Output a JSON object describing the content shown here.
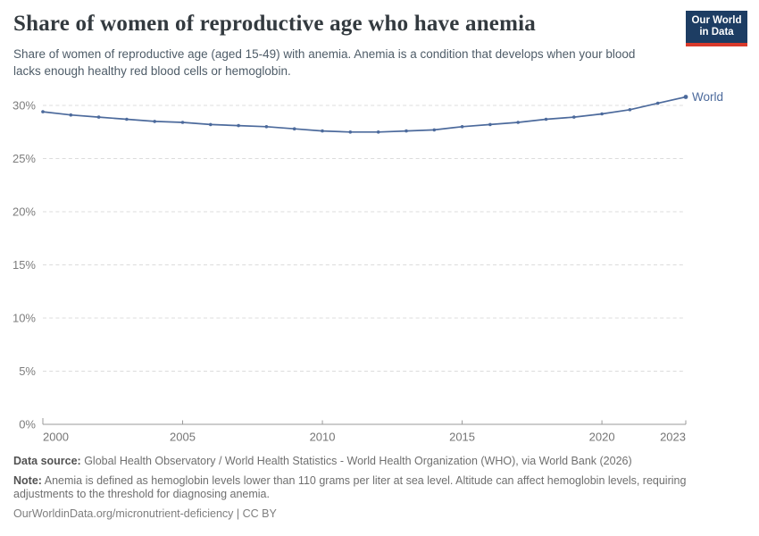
{
  "header": {
    "title": "Share of women of reproductive age who have anemia",
    "subtitle": "Share of women of reproductive age (aged 15-49) with anemia. Anemia is a condition that develops when your blood lacks enough healthy red blood cells or hemoglobin.",
    "logo": {
      "line1": "Our World",
      "line2": "in Data"
    }
  },
  "colors": {
    "accent_blue": "#4c6a9c",
    "logo_navy": "#1d3d63",
    "logo_red": "#d93a2b",
    "gridline": "#dcdcdc",
    "axis_text": "#7d7d7d"
  },
  "chart_data": {
    "type": "line",
    "title": "Share of women of reproductive age who have anemia",
    "xlabel": "",
    "ylabel": "",
    "x": [
      2000,
      2001,
      2002,
      2003,
      2004,
      2005,
      2006,
      2007,
      2008,
      2009,
      2010,
      2011,
      2012,
      2013,
      2014,
      2015,
      2016,
      2017,
      2018,
      2019,
      2020,
      2021,
      2022,
      2023
    ],
    "series": [
      {
        "name": "World",
        "color": "#4c6a9c",
        "values": [
          29.4,
          29.1,
          28.9,
          28.7,
          28.5,
          28.4,
          28.2,
          28.1,
          28.0,
          27.8,
          27.6,
          27.5,
          27.5,
          27.6,
          27.7,
          28.0,
          28.2,
          28.4,
          28.7,
          28.9,
          29.2,
          29.6,
          30.2,
          30.8
        ]
      }
    ],
    "xlim": [
      2000,
      2023
    ],
    "ylim": [
      0,
      32
    ],
    "xticks": [
      2000,
      2005,
      2010,
      2015,
      2020,
      2023
    ],
    "yticks": [
      0,
      5,
      10,
      15,
      20,
      25,
      30
    ],
    "y_tick_suffix": "%",
    "grid": "horizontal-dashed",
    "legend": "label-at-line-end"
  },
  "footer": {
    "data_source_label": "Data source:",
    "data_source_text": " Global Health Observatory / World Health Statistics - World Health Organization (WHO), via World Bank (2026)",
    "note_label": "Note:",
    "note_text": " Anemia is defined as hemoglobin levels lower than 110 grams per liter at sea level. Altitude can affect hemoglobin levels, requiring adjustments to the threshold for diagnosing anemia.",
    "url": "OurWorldinData.org/micronutrient-deficiency",
    "separator": " | ",
    "license": "CC BY"
  }
}
